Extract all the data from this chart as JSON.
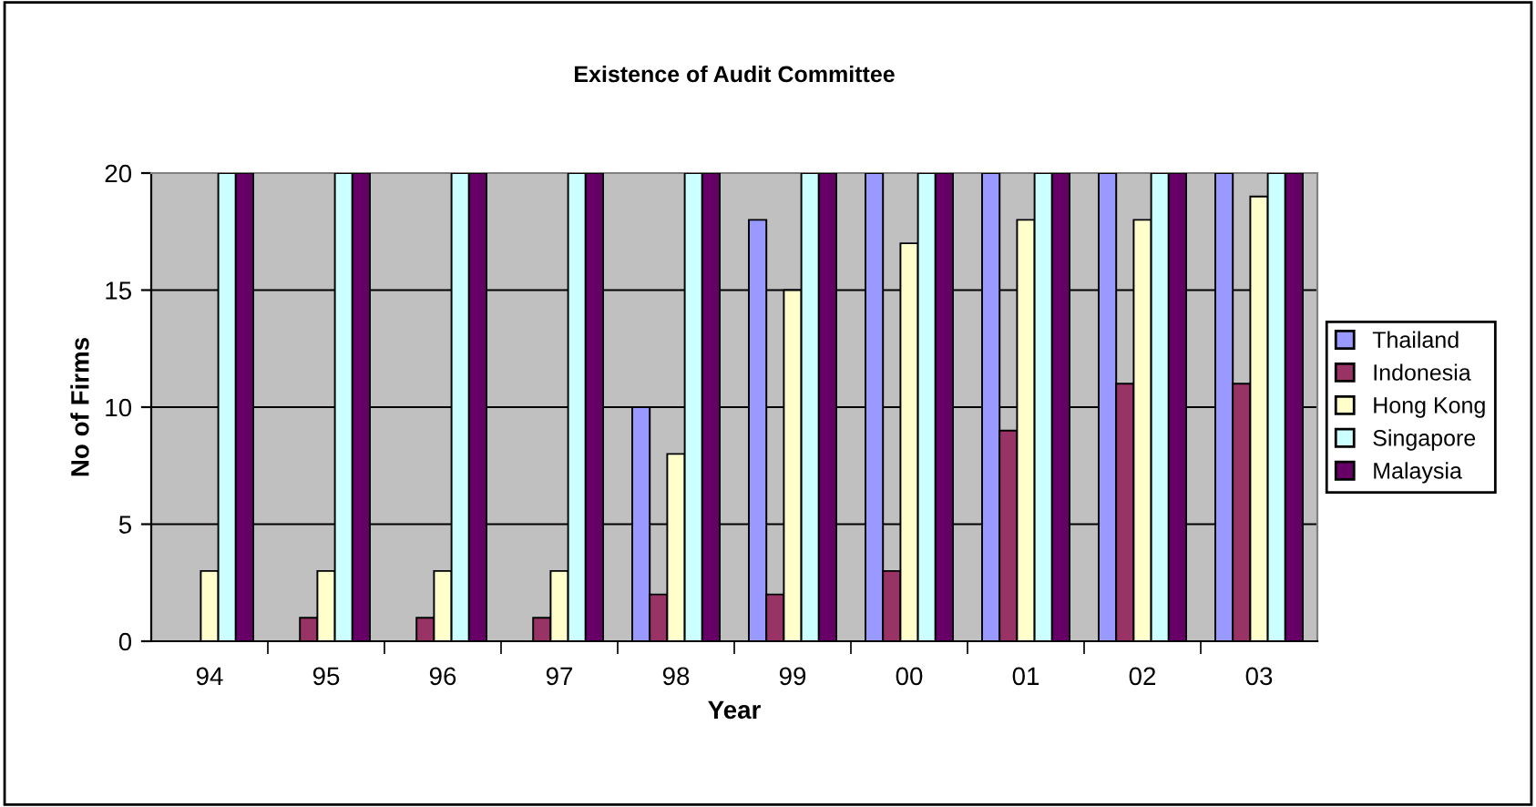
{
  "chart_data": {
    "type": "bar",
    "title": "Existence of Audit Committee",
    "xlabel": "Year",
    "ylabel": "No of Firms",
    "categories": [
      "94",
      "95",
      "96",
      "97",
      "98",
      "99",
      "00",
      "01",
      "02",
      "03"
    ],
    "series": [
      {
        "name": "Thailand",
        "color": "#9999ff",
        "values": [
          null,
          null,
          null,
          null,
          10,
          18,
          20,
          20,
          20,
          20
        ]
      },
      {
        "name": "Indonesia",
        "color": "#993366",
        "values": [
          null,
          1,
          1,
          1,
          2,
          2,
          3,
          9,
          11,
          11
        ]
      },
      {
        "name": "Hong Kong",
        "color": "#ffffcc",
        "values": [
          3,
          3,
          3,
          3,
          8,
          15,
          17,
          18,
          18,
          19
        ]
      },
      {
        "name": "Singapore",
        "color": "#ccffff",
        "values": [
          20,
          20,
          20,
          20,
          20,
          20,
          20,
          20,
          20,
          20
        ]
      },
      {
        "name": "Malaysia",
        "color": "#660066",
        "values": [
          20,
          20,
          20,
          20,
          20,
          20,
          20,
          20,
          20,
          20
        ]
      }
    ],
    "ylim": [
      0,
      20
    ],
    "yticks": [
      0,
      5,
      10,
      15,
      20
    ],
    "grid": "y",
    "legend": "right"
  }
}
